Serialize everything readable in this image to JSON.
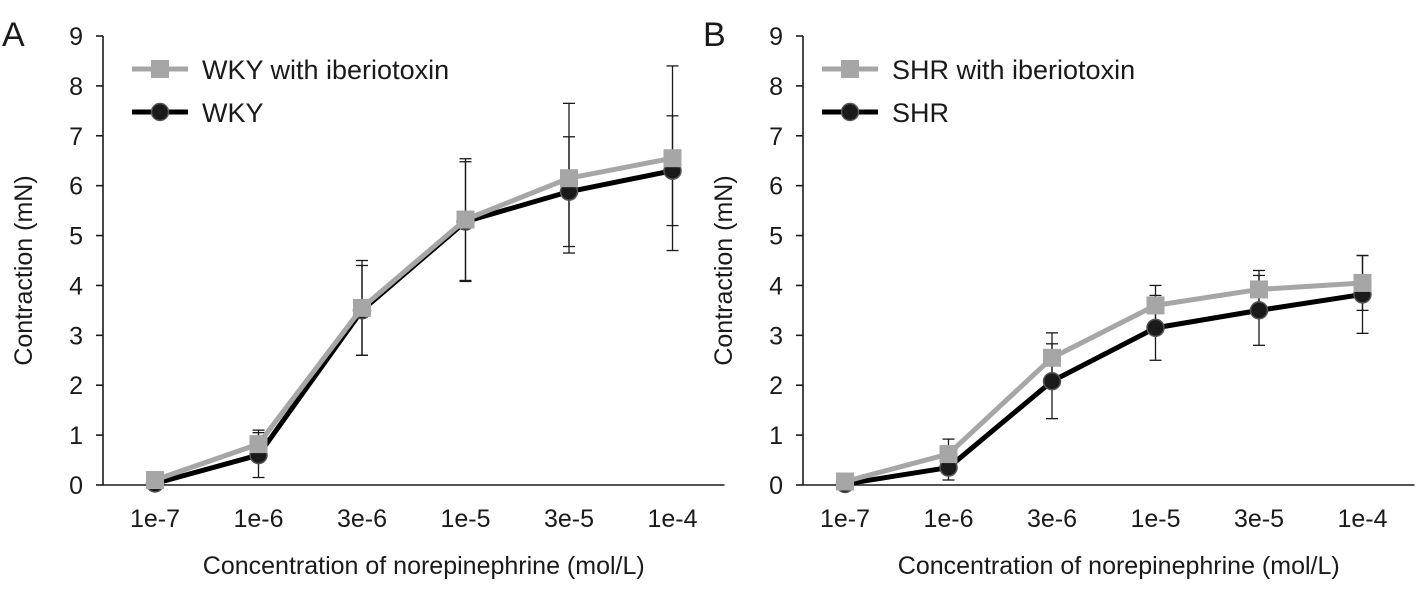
{
  "chart_data": [
    {
      "type": "line",
      "panel_label": "A",
      "xlabel": "Concentration of norepinephrine (mol/L)",
      "ylabel": "Contraction (mN)",
      "categories": [
        "1e-7",
        "1e-6",
        "3e-6",
        "1e-5",
        "3e-5",
        "1e-4"
      ],
      "ylim": [
        0,
        9
      ],
      "yticks": [
        "0",
        "1",
        "2",
        "3",
        "4",
        "5",
        "6",
        "7",
        "8",
        "9"
      ],
      "grid": false,
      "legend_position": "top-left",
      "series": [
        {
          "name": "WKY with iberiotoxin",
          "color": "#a6a6a6",
          "marker": "square",
          "values": [
            0.1,
            0.82,
            3.55,
            5.32,
            6.15,
            6.55
          ],
          "error": [
            0.05,
            0.28,
            0.95,
            1.22,
            1.5,
            1.85
          ]
        },
        {
          "name": "WKY",
          "color": "#000000",
          "marker": "circle",
          "values": [
            0.03,
            0.6,
            3.5,
            5.28,
            5.88,
            6.3
          ],
          "error": [
            0.03,
            0.45,
            0.9,
            1.2,
            1.1,
            1.1
          ]
        }
      ]
    },
    {
      "type": "line",
      "panel_label": "B",
      "xlabel": "Concentration of norepinephrine (mol/L)",
      "ylabel": "Contraction (mN)",
      "categories": [
        "1e-7",
        "1e-6",
        "3e-6",
        "1e-5",
        "3e-5",
        "1e-4"
      ],
      "ylim": [
        0,
        9
      ],
      "yticks": [
        "0",
        "1",
        "2",
        "3",
        "4",
        "5",
        "6",
        "7",
        "8",
        "9"
      ],
      "grid": false,
      "legend_position": "top-left",
      "series": [
        {
          "name": "SHR with iberiotoxin",
          "color": "#a6a6a6",
          "marker": "square",
          "values": [
            0.07,
            0.62,
            2.55,
            3.6,
            3.92,
            4.05
          ],
          "error": [
            0.03,
            0.3,
            0.5,
            0.4,
            0.38,
            0.55
          ]
        },
        {
          "name": "SHR",
          "color": "#000000",
          "marker": "circle",
          "values": [
            0.02,
            0.35,
            2.08,
            3.15,
            3.5,
            3.82
          ],
          "error": [
            0.02,
            0.25,
            0.75,
            0.65,
            0.7,
            0.78
          ]
        }
      ]
    }
  ]
}
